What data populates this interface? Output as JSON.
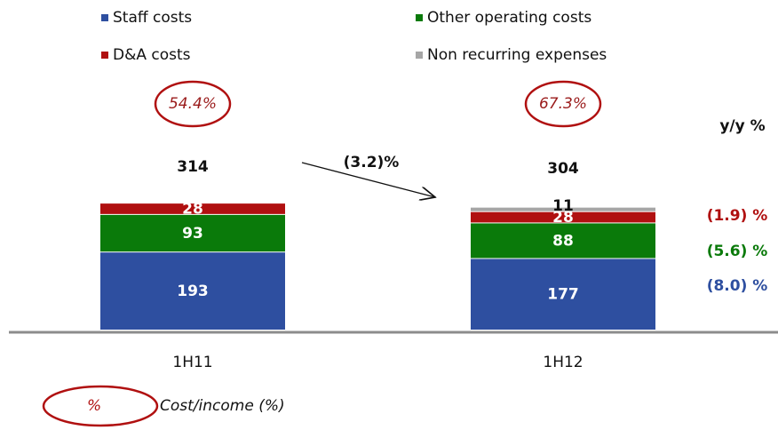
{
  "chart_data": {
    "type": "stacked_bar",
    "categories": [
      "1H11",
      "1H12"
    ],
    "series": [
      {
        "name": "Staff costs",
        "color": "#2e4fa0",
        "values": [
          193,
          177
        ],
        "yoy": "(8.0) %"
      },
      {
        "name": "Other operating costs",
        "color": "#0a7a0a",
        "values": [
          93,
          88
        ],
        "yoy": "(5.6) %"
      },
      {
        "name": "D&A costs",
        "color": "#b01010",
        "values": [
          28,
          28
        ],
        "yoy": "(1.9) %"
      },
      {
        "name": "Non recurring expenses",
        "color": "#a6a6a6",
        "values": [
          null,
          11
        ]
      }
    ],
    "totals": [
      314,
      304
    ],
    "cost_income": {
      "values": [
        54.4,
        67.3
      ],
      "value_labels": [
        "54.4%",
        "67.3%"
      ]
    },
    "change_label": "(3.2)%",
    "yoy_title": "y/y %",
    "footnote": {
      "symbol": "%",
      "text": "Cost/income (%)"
    }
  }
}
